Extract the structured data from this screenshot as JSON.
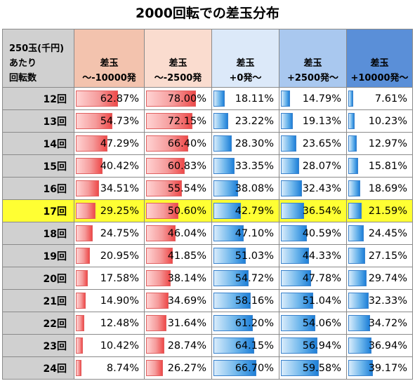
{
  "title": "2000回転での差玉分布",
  "header": {
    "row_label": [
      "250玉(千円)",
      "あたり",
      "回転数"
    ],
    "columns": [
      [
        "差玉",
        "～-10000発"
      ],
      [
        "差玉",
        "～-2500発"
      ],
      [
        "差玉",
        "+0発～"
      ],
      [
        "差玉",
        "+2500発～"
      ],
      [
        "差玉",
        "+10000発～"
      ]
    ]
  },
  "colors": {
    "header_row": "#d0d0d0",
    "header_cols": [
      "#f3c3ae",
      "#fadccf",
      "#dce9f9",
      "#a9c8ef",
      "#5a8fd8"
    ],
    "highlight_row": "#ffff33",
    "bar_red": "#ee4a4a",
    "bar_blue": "#1f80d8"
  },
  "highlight_row_label": "17回",
  "rows": [
    {
      "label": "12回",
      "values": [
        "62.87%",
        "78.00%",
        "18.11%",
        "14.79%",
        "7.61%"
      ]
    },
    {
      "label": "13回",
      "values": [
        "54.73%",
        "72.15%",
        "23.22%",
        "19.13%",
        "10.23%"
      ]
    },
    {
      "label": "14回",
      "values": [
        "47.29%",
        "66.40%",
        "28.30%",
        "23.65%",
        "12.97%"
      ]
    },
    {
      "label": "15回",
      "values": [
        "40.42%",
        "60.83%",
        "33.35%",
        "28.07%",
        "15.81%"
      ]
    },
    {
      "label": "16回",
      "values": [
        "34.51%",
        "55.54%",
        "38.08%",
        "32.43%",
        "18.69%"
      ]
    },
    {
      "label": "17回",
      "values": [
        "29.25%",
        "50.60%",
        "42.79%",
        "36.54%",
        "21.59%"
      ]
    },
    {
      "label": "18回",
      "values": [
        "24.75%",
        "46.04%",
        "47.10%",
        "40.59%",
        "24.45%"
      ]
    },
    {
      "label": "19回",
      "values": [
        "20.95%",
        "41.85%",
        "51.03%",
        "44.33%",
        "27.15%"
      ]
    },
    {
      "label": "20回",
      "values": [
        "17.58%",
        "38.14%",
        "54.72%",
        "47.78%",
        "29.74%"
      ]
    },
    {
      "label": "21回",
      "values": [
        "14.90%",
        "34.69%",
        "58.16%",
        "51.04%",
        "32.33%"
      ]
    },
    {
      "label": "22回",
      "values": [
        "12.48%",
        "31.64%",
        "61.20%",
        "54.06%",
        "34.72%"
      ]
    },
    {
      "label": "23回",
      "values": [
        "10.42%",
        "28.74%",
        "64.15%",
        "56.94%",
        "36.94%"
      ]
    },
    {
      "label": "24回",
      "values": [
        "8.74%",
        "26.27%",
        "66.70%",
        "59.58%",
        "39.17%"
      ]
    }
  ]
}
